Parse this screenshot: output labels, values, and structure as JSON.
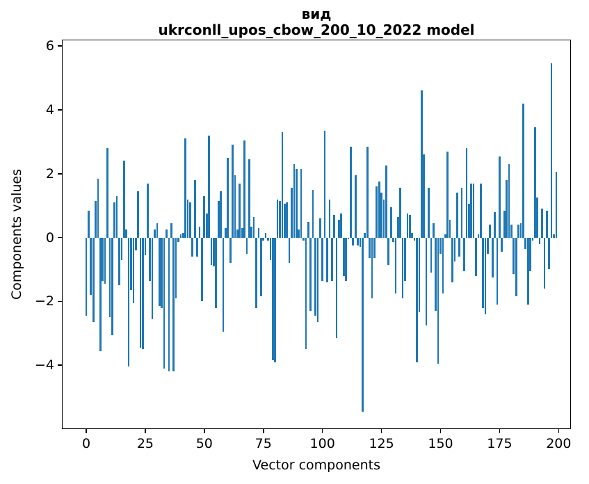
{
  "title": {
    "line1": "вид",
    "line2": "ukrconll_upos_cbow_200_10_2022 model"
  },
  "chart_data": {
    "type": "bar",
    "title": "вид",
    "subtitle": "ukrconll_upos_cbow_200_10_2022 model",
    "xlabel": "Vector components",
    "ylabel": "Components values",
    "bar_color": "#1f77b4",
    "n_components": 200,
    "x_start": 0,
    "xticks": [
      0,
      25,
      50,
      75,
      100,
      125,
      150,
      175,
      200
    ],
    "yticks": [
      6,
      4,
      2,
      0,
      -2,
      -4
    ],
    "xlim": [
      -10.3,
      205.2
    ],
    "ylim": [
      -6.0,
      6.2
    ],
    "grid": false,
    "legend": null,
    "values": [
      -2.45,
      0.85,
      -1.8,
      -2.65,
      1.15,
      1.85,
      -3.55,
      -1.35,
      -1.45,
      2.8,
      -2.5,
      -3.05,
      1.1,
      1.3,
      -1.5,
      -0.7,
      2.4,
      0.25,
      -4.05,
      -1.65,
      -2.05,
      -0.4,
      1.45,
      -3.45,
      -3.5,
      -0.55,
      1.7,
      -1.35,
      -2.55,
      0.25,
      0.45,
      -2.15,
      -2.2,
      -4.1,
      0.25,
      -4.2,
      0.45,
      -4.2,
      -1.9,
      -0.15,
      0.1,
      0.15,
      3.1,
      1.2,
      1.1,
      -0.6,
      1.8,
      -0.6,
      0.35,
      -2.0,
      1.3,
      0.75,
      3.2,
      -0.85,
      -0.9,
      -2.2,
      1.15,
      1.45,
      -2.95,
      0.3,
      2.5,
      -0.8,
      2.9,
      1.95,
      0.25,
      1.7,
      0.3,
      3.05,
      -0.5,
      2.45,
      0.35,
      0.65,
      -2.2,
      0.3,
      -1.85,
      -0.1,
      0.15,
      -0.1,
      -0.7,
      -3.85,
      -3.9,
      1.2,
      1.15,
      3.3,
      1.05,
      1.1,
      -0.8,
      1.55,
      2.3,
      2.15,
      0.25,
      2.15,
      -0.1,
      -3.5,
      0.5,
      -2.3,
      1.5,
      -2.45,
      -2.65,
      0.6,
      -1.35,
      3.35,
      -1.4,
      1.2,
      -1.35,
      0.7,
      -3.15,
      0.55,
      0.75,
      -1.2,
      -1.35,
      -0.05,
      2.85,
      -0.25,
      1.95,
      -0.25,
      -0.3,
      -5.45,
      0.15,
      2.85,
      -0.65,
      -1.9,
      -0.65,
      1.6,
      1.75,
      1.4,
      1.2,
      2.25,
      -0.85,
      0.95,
      -0.15,
      -1.75,
      0.65,
      1.55,
      -1.9,
      -1.35,
      0.75,
      0.7,
      0.15,
      -0.1,
      -3.9,
      -2.35,
      4.6,
      2.6,
      -2.75,
      1.55,
      -1.1,
      0.45,
      -2.3,
      -3.95,
      -0.5,
      -1.75,
      0.1,
      2.7,
      0.55,
      -1.4,
      -0.75,
      1.4,
      -0.6,
      1.55,
      -1.05,
      2.8,
      1.05,
      1.7,
      1.7,
      -1.2,
      0.1,
      1.7,
      -2.2,
      -2.4,
      -0.5,
      0.4,
      -1.25,
      0.8,
      -2.1,
      2.55,
      -0.45,
      0.85,
      1.8,
      2.3,
      0.4,
      -1.15,
      -1.85,
      0.4,
      0.45,
      4.2,
      -0.35,
      -2.1,
      -1.05,
      -0.1,
      3.45,
      1.25,
      -0.2,
      0.9,
      -1.6,
      0.85,
      -1.0,
      5.45,
      0.1,
      2.05
    ]
  }
}
